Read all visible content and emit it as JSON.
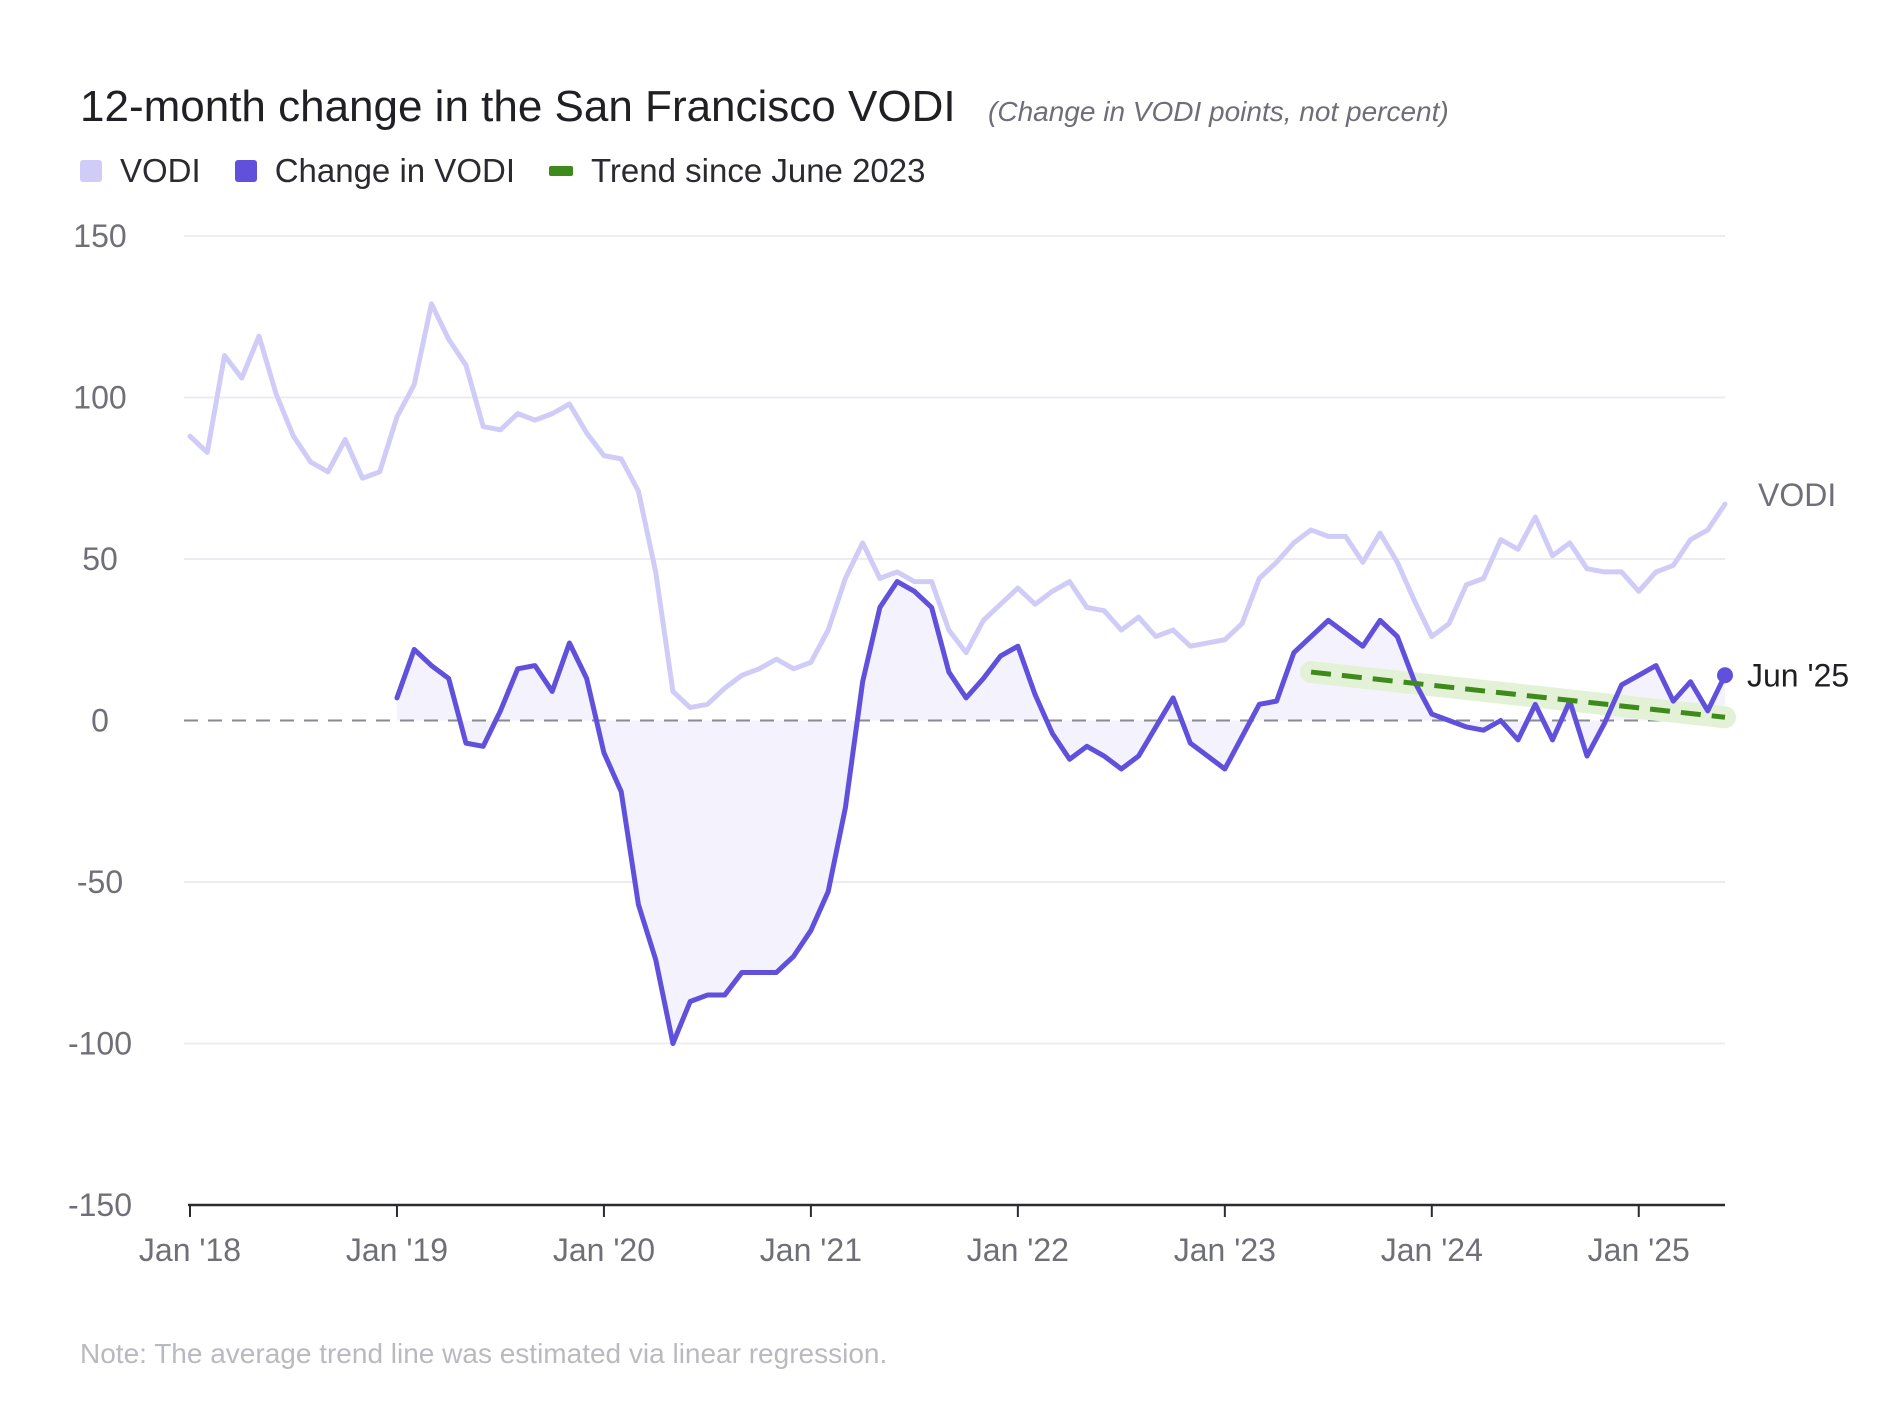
{
  "title": "12-month change in the San Francisco VODI",
  "subtitle": "(Change in VODI points, not percent)",
  "legend": [
    {
      "label": "VODI",
      "color": "#cfcdf7",
      "style": "square"
    },
    {
      "label": "Change in VODI",
      "color": "#6150dc",
      "style": "square"
    },
    {
      "label": "Trend since June 2023",
      "color": "#3f8a1c",
      "style": "dash"
    }
  ],
  "note": "Note: The average trend line was estimated via linear regression.",
  "chart_data": {
    "type": "line",
    "title": "12-month change in the San Francisco VODI",
    "subtitle": "(Change in VODI points, not percent)",
    "ylim": [
      -150,
      150
    ],
    "yticks": [
      150,
      100,
      50,
      0,
      -50,
      -100,
      -150
    ],
    "ytick_labels": [
      "150",
      "100",
      "50",
      "0",
      "-50",
      "-100",
      "-150"
    ],
    "x_start": "Jan '18",
    "xticks": [
      0,
      12,
      24,
      36,
      48,
      60,
      72,
      84
    ],
    "xtick_labels": [
      "Jan '18",
      "Jan '19",
      "Jan '20",
      "Jan '21",
      "Jan '22",
      "Jan '23",
      "Jan '24",
      "Jan '25"
    ],
    "x_range": [
      0,
      89
    ],
    "grid": true,
    "legend_position": "top-left",
    "colors": {
      "vodi": "#cfcdf7",
      "change": "#6150dc",
      "fill": "#f4f3fd",
      "trend": "#3f8a1c",
      "trend_band": "#e3f2d6",
      "grid": "#ececf0",
      "zero": "#8a8a92"
    },
    "series": [
      {
        "name": "VODI",
        "color": "#cfcdf7",
        "end_label": "VODI",
        "values": [
          88,
          83,
          113,
          106,
          119,
          101,
          88,
          80,
          77,
          87,
          75,
          77,
          94,
          104,
          129,
          118,
          110,
          91,
          90,
          95,
          93,
          95,
          98,
          89,
          82,
          81,
          71,
          46,
          9,
          4,
          5,
          10,
          14,
          16,
          19,
          16,
          18,
          28,
          44,
          55,
          44,
          46,
          43,
          43,
          28,
          21,
          31,
          36,
          41,
          36,
          40,
          43,
          35,
          34,
          28,
          32,
          26,
          28,
          23,
          24,
          25,
          30,
          44,
          49,
          55,
          59,
          57,
          57,
          49,
          58,
          49,
          37,
          26,
          30,
          42,
          44,
          56,
          53,
          63,
          51,
          55,
          47,
          46,
          46,
          40,
          46,
          48,
          56,
          59,
          67
        ]
      },
      {
        "name": "Change in VODI",
        "color": "#6150dc",
        "x_offset": 12,
        "end_label": "Jun '25",
        "values": [
          7,
          22,
          17,
          13,
          -7,
          -8,
          3,
          16,
          17,
          9,
          24,
          13,
          -10,
          -22,
          -57,
          -74,
          -100,
          -87,
          -85,
          -85,
          -78,
          -78,
          -78,
          -73,
          -65,
          -53,
          -27,
          12,
          35,
          43,
          40,
          35,
          15,
          7,
          13,
          20,
          23,
          8,
          -4,
          -12,
          -8,
          -11,
          -15,
          -11,
          -2,
          7,
          -7,
          -11,
          -15,
          -5,
          5,
          6,
          21,
          26,
          31,
          27,
          23,
          31,
          26,
          12,
          2,
          0,
          -2,
          -3,
          0,
          -6,
          5,
          -6,
          6,
          -11,
          -1,
          11,
          14,
          17,
          6,
          12,
          3,
          14
        ]
      },
      {
        "name": "Trend since June 2023",
        "color": "#3f8a1c",
        "x": [
          65,
          89
        ],
        "values": [
          15,
          1
        ]
      }
    ]
  }
}
